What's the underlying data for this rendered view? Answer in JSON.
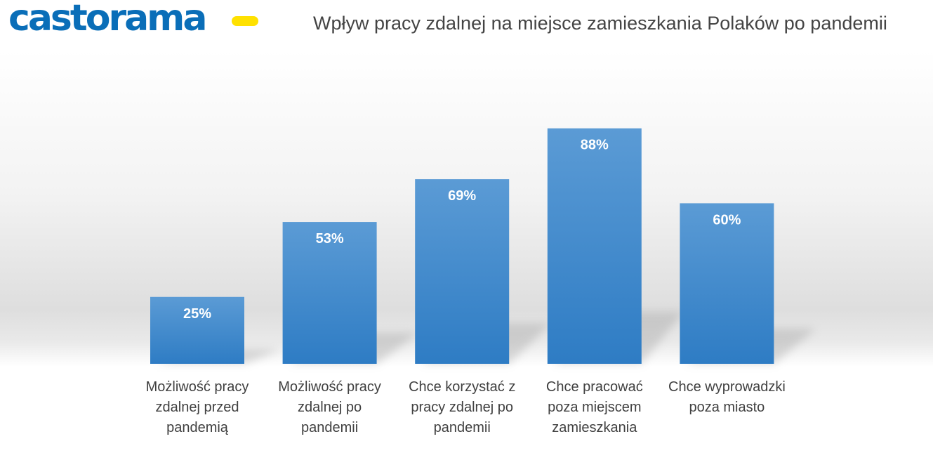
{
  "brand": {
    "name": "castorama",
    "color": "#0a6eb8",
    "accent": "#ffe100"
  },
  "chart_data": {
    "type": "bar",
    "title": "Wpływ pracy zdalnej na miejsce zamieszkania Polaków po pandemii",
    "categories": [
      [
        "Możliwość pracy",
        "zdalnej przed",
        "pandemią"
      ],
      [
        "Możliwość pracy",
        "zdalnej po",
        "pandemii"
      ],
      [
        "Chce korzystać z",
        "pracy zdalnej po",
        "pandemii"
      ],
      [
        "Chce pracować",
        "poza miejscem",
        "zamieszkania"
      ],
      [
        "Chce wyprowadzki",
        "poza miasto"
      ]
    ],
    "values": [
      25,
      53,
      69,
      88,
      60
    ],
    "value_labels": [
      "25%",
      "53%",
      "69%",
      "88%",
      "60%"
    ],
    "unit": "%",
    "ylim": [
      0,
      100
    ],
    "grid": false,
    "legend": "none",
    "bar_color_top": "#5b9bd5",
    "bar_color_bottom": "#2e7cc4"
  }
}
